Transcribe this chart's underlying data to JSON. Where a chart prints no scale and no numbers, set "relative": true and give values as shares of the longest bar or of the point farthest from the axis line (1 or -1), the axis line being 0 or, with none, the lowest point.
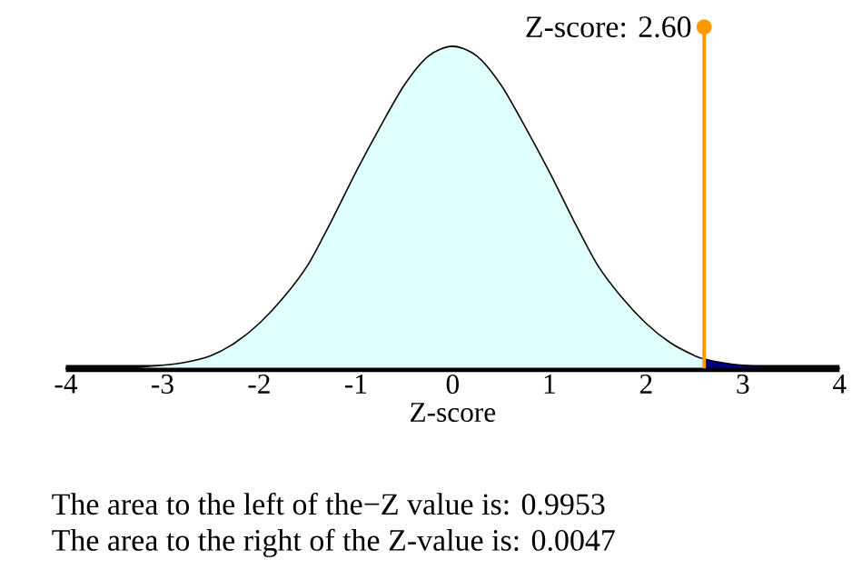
{
  "chart_data": {
    "type": "area",
    "relative": true,
    "xlabel": "Z-score",
    "xlim": [
      -4,
      4
    ],
    "xticks": [
      -4,
      -3,
      -2,
      -1,
      0,
      1,
      2,
      3,
      4
    ],
    "series": [
      {
        "color": "#e0ffff",
        "x": [
          -4,
          -3.5,
          -3,
          -2.75,
          -2.5,
          -2.25,
          -2,
          -1.75,
          -1.5,
          -1.25,
          -1,
          -0.75,
          -0.5,
          -0.25,
          0,
          0.25,
          0.5,
          0.75,
          1,
          1.25,
          1.5,
          1.75,
          2,
          2.25,
          2.5,
          2.6
        ],
        "values": [
          0,
          0,
          0.01,
          0.02,
          0.04,
          0.08,
          0.14,
          0.22,
          0.32,
          0.46,
          0.61,
          0.75,
          0.88,
          0.97,
          1,
          0.97,
          0.88,
          0.75,
          0.61,
          0.46,
          0.32,
          0.22,
          0.14,
          0.08,
          0.04,
          0.03
        ]
      },
      {
        "color": "#000080",
        "x": [
          2.6,
          2.75,
          3,
          3.5,
          4
        ],
        "values": [
          0.03,
          0.02,
          0.01,
          0,
          0
        ]
      }
    ],
    "ref_lines": [
      {
        "axis": "x",
        "value": 2.6,
        "label": "Z-score: 2.60",
        "color": "#ff9900"
      }
    ],
    "annotations": [
      "The area to the left of the−Z value is: 0.9953",
      "The area to the right of the Z-value is: 0.0047"
    ]
  }
}
